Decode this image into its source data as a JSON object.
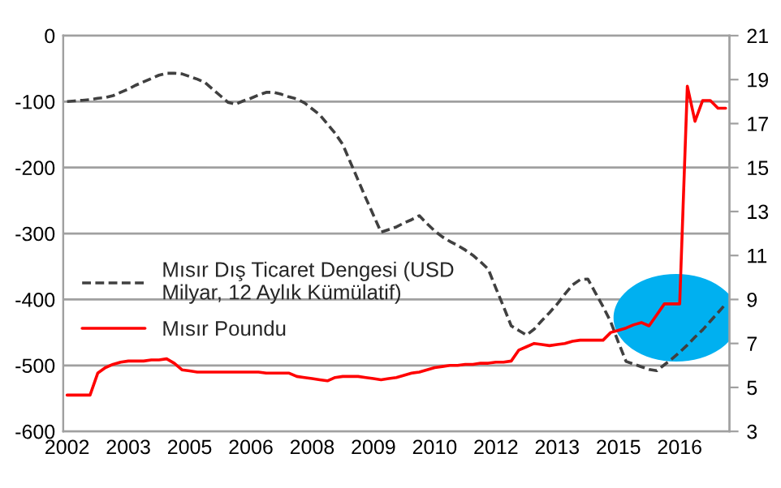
{
  "chart_data": {
    "type": "line",
    "categories": [
      "2002",
      null,
      null,
      null,
      null,
      null,
      null,
      null,
      "2003",
      null,
      null,
      null,
      null,
      null,
      null,
      null,
      "2005",
      null,
      null,
      null,
      null,
      null,
      null,
      null,
      "2006",
      null,
      null,
      null,
      null,
      null,
      null,
      null,
      "2008",
      null,
      null,
      null,
      null,
      null,
      null,
      null,
      "2009",
      null,
      null,
      null,
      null,
      null,
      null,
      null,
      "2010",
      null,
      null,
      null,
      null,
      null,
      null,
      null,
      "2012",
      null,
      null,
      null,
      null,
      null,
      null,
      null,
      "2013",
      null,
      null,
      null,
      null,
      null,
      null,
      null,
      "2015",
      null,
      null,
      null,
      null,
      null,
      null,
      null,
      "2016",
      null,
      null,
      null,
      null,
      null,
      null
    ],
    "ylim": [
      -600,
      0
    ],
    "yticks": [
      -600,
      -500,
      -400,
      -300,
      -200,
      -100,
      0
    ],
    "y2lim": [
      3,
      21
    ],
    "y2ticks": [
      3,
      5,
      7,
      9,
      11,
      13,
      15,
      17,
      19,
      21
    ],
    "grid": "y",
    "legend": "left",
    "series": [
      {
        "name": "Mısır Dış Ticaret Dengesi (USD Milyar, 12 Aylık Kümülatif)",
        "color": "#404040",
        "line_style": "dashed",
        "values": [
          -100,
          -99,
          -98,
          -97,
          -95,
          -94,
          -91,
          -86,
          -81,
          -75,
          -70,
          -65,
          -60,
          -57,
          -57,
          -58,
          -62,
          -66,
          -71,
          -81,
          -91,
          -101,
          -104,
          -99,
          -95,
          -90,
          -86,
          -86,
          -89,
          -93,
          -96,
          -102,
          -111,
          -120,
          -134,
          -148,
          -165,
          -192,
          -219,
          -246,
          -272,
          -298,
          -294,
          -290,
          -284,
          -279,
          -273,
          -285,
          -296,
          -305,
          -312,
          -318,
          -325,
          -333,
          -343,
          -354,
          -383,
          -411,
          -440,
          -447,
          -454,
          -445,
          -432,
          -420,
          -407,
          -392,
          -378,
          -370,
          -369,
          -390,
          -411,
          -434,
          -465,
          -494,
          -498,
          -502,
          -506,
          -508,
          -499,
          -490,
          -480,
          -469,
          -457,
          -446,
          -433,
          -420,
          -407
        ]
      },
      {
        "name": "Mısır Poundu",
        "color": "#ff0000",
        "line_style": "solid",
        "axis": "y2",
        "values": [
          4.65,
          4.65,
          4.65,
          4.65,
          5.65,
          5.9,
          6.05,
          6.15,
          6.2,
          6.2,
          6.2,
          6.25,
          6.25,
          6.3,
          6.1,
          5.8,
          5.75,
          5.7,
          5.7,
          5.7,
          5.7,
          5.7,
          5.7,
          5.7,
          5.7,
          5.7,
          5.65,
          5.65,
          5.65,
          5.65,
          5.5,
          5.45,
          5.4,
          5.35,
          5.3,
          5.45,
          5.5,
          5.5,
          5.5,
          5.45,
          5.4,
          5.35,
          5.4,
          5.45,
          5.55,
          5.65,
          5.7,
          5.8,
          5.9,
          5.95,
          6.0,
          6.0,
          6.05,
          6.05,
          6.1,
          6.1,
          6.15,
          6.15,
          6.2,
          6.7,
          6.85,
          7.0,
          6.95,
          6.9,
          6.95,
          7.0,
          7.1,
          7.15,
          7.15,
          7.15,
          7.15,
          7.5,
          7.6,
          7.7,
          7.85,
          7.95,
          7.8,
          8.3,
          8.8,
          8.8,
          8.8,
          18.7,
          17.1,
          18.05,
          18.05,
          17.7,
          17.7
        ]
      }
    ]
  }
}
